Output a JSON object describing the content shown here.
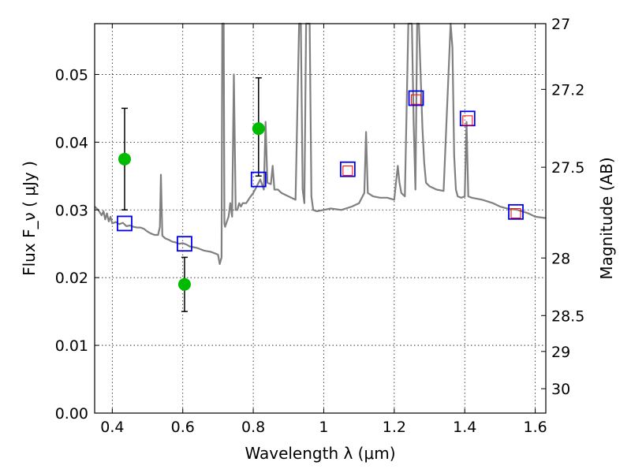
{
  "chart_data": {
    "type": "line",
    "xlabel": "Wavelength  λ (μm)",
    "ylabel": "Flux  F_ν  ( μJy )",
    "ylabel_right": "Magnitude (AB)",
    "xlim": [
      0.35,
      1.63
    ],
    "ylim": [
      0.0,
      0.0575
    ],
    "grid": true,
    "x_ticks": [
      0.4,
      0.6,
      0.8,
      1.0,
      1.2,
      1.4,
      1.6
    ],
    "x_tick_labels": [
      "0.4",
      "0.6",
      "0.8",
      "1",
      "1.2",
      "1.4",
      "1.6"
    ],
    "y_ticks": [
      0.0,
      0.01,
      0.02,
      0.03,
      0.04,
      0.05
    ],
    "y_tick_labels": [
      "0.00",
      "0.01",
      "0.02",
      "0.03",
      "0.04",
      "0.05"
    ],
    "right_ticks": [
      {
        "label": "27",
        "flux": 0.0575
      },
      {
        "label": "27.2",
        "flux": 0.0478
      },
      {
        "label": "27.5",
        "flux": 0.0363
      },
      {
        "label": "28",
        "flux": 0.0229
      },
      {
        "label": "28.5",
        "flux": 0.0144
      },
      {
        "label": "29",
        "flux": 0.0091
      },
      {
        "label": "30",
        "flux": 0.0036
      }
    ],
    "series": [
      {
        "type": "line",
        "color": "#808080",
        "x": [
          0.35,
          0.36,
          0.37,
          0.375,
          0.38,
          0.385,
          0.39,
          0.395,
          0.4,
          0.41,
          0.42,
          0.43,
          0.44,
          0.45,
          0.46,
          0.47,
          0.48,
          0.49,
          0.5,
          0.51,
          0.52,
          0.53,
          0.535,
          0.538,
          0.542,
          0.55,
          0.56,
          0.57,
          0.58,
          0.59,
          0.6,
          0.61,
          0.62,
          0.63,
          0.64,
          0.65,
          0.66,
          0.67,
          0.68,
          0.69,
          0.7,
          0.705,
          0.71,
          0.712,
          0.714,
          0.716,
          0.718,
          0.72,
          0.73,
          0.735,
          0.74,
          0.745,
          0.75,
          0.755,
          0.76,
          0.765,
          0.77,
          0.78,
          0.79,
          0.8,
          0.81,
          0.815,
          0.82,
          0.83,
          0.835,
          0.84,
          0.85,
          0.855,
          0.86,
          0.87,
          0.88,
          0.9,
          0.92,
          0.93,
          0.935,
          0.94,
          0.945,
          0.95,
          0.955,
          0.96,
          0.965,
          0.97,
          0.98,
          1.0,
          1.02,
          1.05,
          1.08,
          1.1,
          1.115,
          1.12,
          1.125,
          1.14,
          1.16,
          1.18,
          1.2,
          1.21,
          1.215,
          1.22,
          1.23,
          1.24,
          1.25,
          1.255,
          1.26,
          1.265,
          1.27,
          1.28,
          1.285,
          1.29,
          1.3,
          1.32,
          1.34,
          1.36,
          1.365,
          1.37,
          1.375,
          1.38,
          1.39,
          1.4,
          1.405,
          1.41,
          1.42,
          1.45,
          1.48,
          1.5,
          1.52,
          1.55,
          1.58,
          1.6,
          1.63
        ],
        "y": [
          0.0305,
          0.03,
          0.0292,
          0.0298,
          0.0286,
          0.0295,
          0.0283,
          0.029,
          0.028,
          0.0282,
          0.0279,
          0.0281,
          0.0276,
          0.0277,
          0.0275,
          0.0274,
          0.0274,
          0.0272,
          0.0268,
          0.0265,
          0.0263,
          0.0263,
          0.0275,
          0.0352,
          0.0262,
          0.0258,
          0.0256,
          0.0253,
          0.0252,
          0.025,
          0.0251,
          0.0249,
          0.0246,
          0.0245,
          0.0244,
          0.0242,
          0.024,
          0.0239,
          0.0238,
          0.0236,
          0.0234,
          0.022,
          0.023,
          0.0575,
          0.0575,
          0.0575,
          0.028,
          0.0275,
          0.029,
          0.031,
          0.029,
          0.05,
          0.03,
          0.03,
          0.031,
          0.0305,
          0.031,
          0.031,
          0.0318,
          0.0325,
          0.0335,
          0.034,
          0.0345,
          0.033,
          0.043,
          0.034,
          0.0338,
          0.0365,
          0.033,
          0.033,
          0.0325,
          0.032,
          0.0315,
          0.0575,
          0.0575,
          0.033,
          0.031,
          0.0575,
          0.0575,
          0.0575,
          0.032,
          0.03,
          0.0298,
          0.03,
          0.0302,
          0.03,
          0.0305,
          0.031,
          0.0325,
          0.0415,
          0.0325,
          0.032,
          0.0318,
          0.0318,
          0.0315,
          0.0365,
          0.034,
          0.0325,
          0.032,
          0.0575,
          0.0575,
          0.043,
          0.033,
          0.0575,
          0.0575,
          0.042,
          0.037,
          0.034,
          0.0335,
          0.033,
          0.0328,
          0.0575,
          0.054,
          0.038,
          0.033,
          0.032,
          0.0318,
          0.032,
          0.043,
          0.032,
          0.0318,
          0.0315,
          0.031,
          0.0305,
          0.0302,
          0.03,
          0.0295,
          0.029,
          0.0288
        ]
      },
      {
        "type": "scatter",
        "name": "",
        "marker": "open-square",
        "color": "#0000ee",
        "x": [
          0.435,
          0.605,
          0.815,
          1.068,
          1.262,
          1.408,
          1.545
        ],
        "y": [
          0.028,
          0.025,
          0.0345,
          0.036,
          0.0465,
          0.0435,
          0.0297
        ]
      },
      {
        "type": "scatter",
        "name": "",
        "marker": "small-open-square",
        "color": "#ff0000",
        "x": [
          1.068,
          1.262,
          1.408,
          1.545
        ],
        "y": [
          0.0358,
          0.0463,
          0.0432,
          0.0295
        ]
      },
      {
        "type": "scatter",
        "name": "",
        "marker": "filled-circle",
        "color": "#00bb00",
        "x": [
          0.435,
          0.605,
          0.815
        ],
        "y": [
          0.0375,
          0.019,
          0.042
        ],
        "err_low": [
          0.03,
          0.015,
          0.035
        ],
        "err_high": [
          0.045,
          0.023,
          0.0495
        ]
      }
    ]
  }
}
